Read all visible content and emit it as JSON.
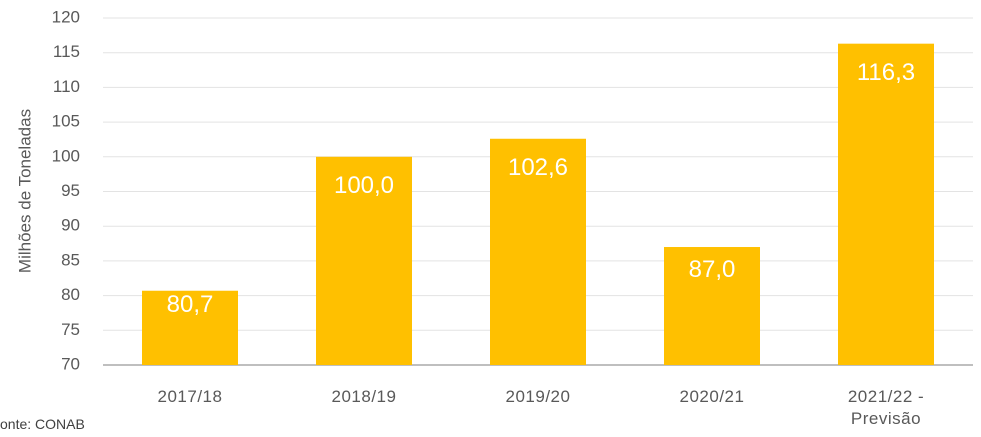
{
  "chart_data": {
    "type": "bar",
    "y_label": "Milhões de Toneladas",
    "source": "onte: CONAB",
    "categories": [
      "2017/18",
      "2018/19",
      "2019/20",
      "2020/21",
      "2021/22 - Previsão"
    ],
    "values": [
      80.7,
      100.0,
      102.6,
      87.0,
      116.3
    ],
    "value_labels": [
      "80,7",
      "100,0",
      "102,6",
      "87,0",
      "116,3"
    ],
    "color": "#ffc000",
    "ylim": [
      70,
      120
    ],
    "yticks": [
      70,
      75,
      80,
      85,
      90,
      95,
      100,
      105,
      110,
      115,
      120
    ],
    "grid": true
  }
}
